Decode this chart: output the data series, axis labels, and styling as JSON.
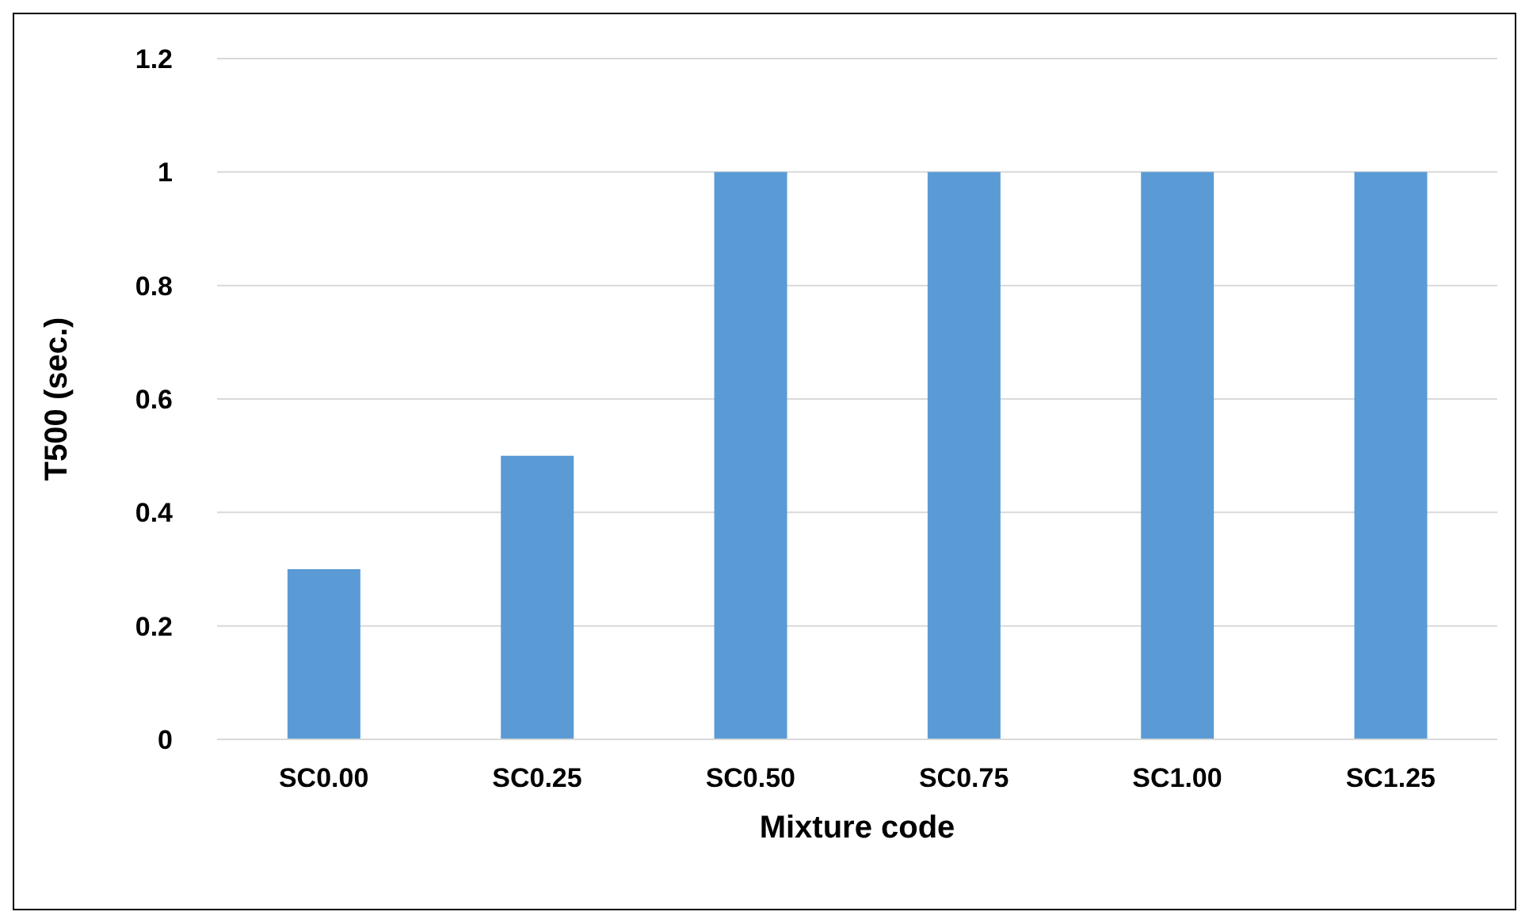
{
  "chart_data": {
    "type": "bar",
    "xlabel": "Mixture code",
    "ylabel": "T500 (sec.)",
    "categories": [
      "SC0.00",
      "SC0.25",
      "SC0.50",
      "SC0.75",
      "SC1.00",
      "SC1.25"
    ],
    "values": [
      0.3,
      0.5,
      1,
      1,
      1,
      1
    ],
    "color": "#5b9bd5",
    "ylim": [
      0,
      1.2
    ],
    "yticks": [
      0,
      0.2,
      0.4,
      0.6,
      0.8,
      1,
      1.2
    ],
    "grid": "y",
    "legend": false
  }
}
